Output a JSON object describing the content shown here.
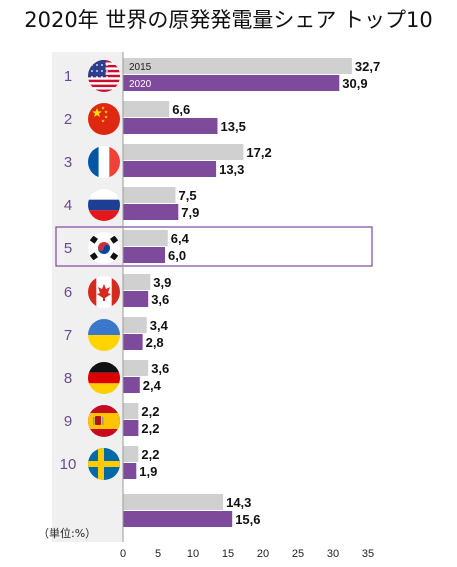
{
  "chart_data": {
    "type": "bar",
    "title": "2020年 世界の原発発電量シェア トップ10",
    "unit_label": "（単位:%）",
    "categories": [
      "1",
      "2",
      "3",
      "4",
      "5",
      "6",
      "7",
      "8",
      "9",
      "10",
      ""
    ],
    "flags": [
      "usa-flag-icon",
      "china-flag-icon",
      "france-flag-icon",
      "russia-flag-icon",
      "south-korea-flag-icon",
      "canada-flag-icon",
      "ukraine-flag-icon",
      "germany-flag-icon",
      "spain-flag-icon",
      "sweden-flag-icon",
      ""
    ],
    "series": [
      {
        "name": "2015",
        "values": [
          32.7,
          6.6,
          17.2,
          7.5,
          6.4,
          3.9,
          3.4,
          3.6,
          2.2,
          2.2,
          14.3
        ],
        "labels": [
          "32,7",
          "6,6",
          "17,2",
          "7,5",
          "6,4",
          "3,9",
          "3,4",
          "3,6",
          "2,2",
          "2,2",
          "14,3"
        ]
      },
      {
        "name": "2020",
        "values": [
          30.9,
          13.5,
          13.3,
          7.9,
          6.0,
          3.6,
          2.8,
          2.4,
          2.2,
          1.9,
          15.6
        ],
        "labels": [
          "30,9",
          "13,5",
          "13,3",
          "7,9",
          "6,0",
          "3,6",
          "2,8",
          "2,4",
          "2,2",
          "1,9",
          "15,6"
        ]
      }
    ],
    "highlighted_rank": "5",
    "xlim": [
      0,
      35
    ],
    "xticks": [
      "0",
      "5",
      "10",
      "15",
      "20",
      "25",
      "30",
      "35"
    ],
    "colors": {
      "2015": "#d0d0d0",
      "2020": "#7e4a9c",
      "highlight_border": "#7e4a9c",
      "rank_text": "#6a4a8c"
    }
  }
}
